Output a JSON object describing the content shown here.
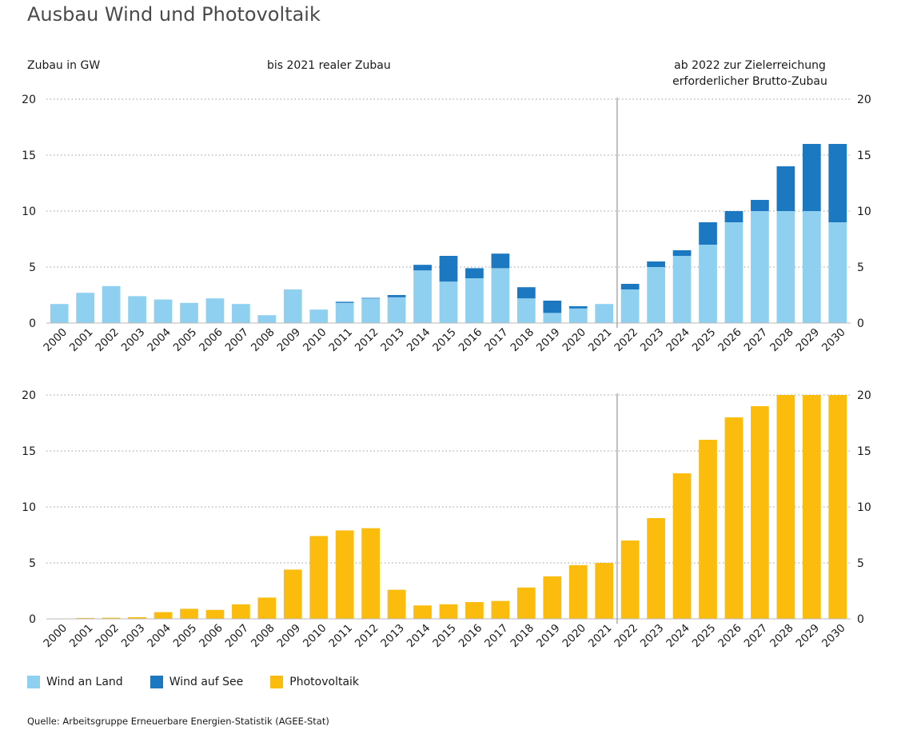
{
  "title": "Ausbau Wind und Photovoltaik",
  "header": {
    "ylabel": "Zubau in GW",
    "left_note": "bis 2021 realer Zubau",
    "right_note_line1": "ab 2022 zur Zielerreichung",
    "right_note_line2": "erforderlicher Brutto-Zubau"
  },
  "legend": [
    {
      "label": "Wind an Land",
      "color": "#8fd0f1"
    },
    {
      "label": "Wind auf See",
      "color": "#1b78c1"
    },
    {
      "label": "Photovoltaik",
      "color": "#fbbc0e"
    }
  ],
  "source": "Quelle: Arbeitsgruppe Erneuerbare Energien-Statistik (AGEE-Stat)",
  "chart_data": [
    {
      "type": "bar",
      "stacked": true,
      "categories": [
        "2000",
        "2001",
        "2002",
        "2003",
        "2004",
        "2005",
        "2006",
        "2007",
        "2008",
        "2009",
        "2010",
        "2011",
        "2012",
        "2013",
        "2014",
        "2015",
        "2016",
        "2017",
        "2018",
        "2019",
        "2020",
        "2021",
        "2022",
        "2023",
        "2024",
        "2025",
        "2026",
        "2027",
        "2028",
        "2029",
        "2030"
      ],
      "series": [
        {
          "name": "Wind an Land",
          "color": "#8fd0f1",
          "values": [
            1.7,
            2.7,
            3.3,
            2.4,
            2.1,
            1.8,
            2.2,
            1.7,
            0.7,
            3.0,
            1.2,
            1.8,
            2.2,
            2.3,
            4.7,
            3.7,
            4.0,
            4.9,
            2.2,
            0.9,
            1.3,
            1.7,
            3.0,
            5.0,
            6.0,
            7.0,
            9.0,
            10.0,
            10.0,
            10.0,
            9.0
          ]
        },
        {
          "name": "Wind auf See",
          "color": "#1b78c1",
          "values": [
            0,
            0,
            0,
            0,
            0,
            0,
            0,
            0,
            0,
            0,
            0,
            0.1,
            0.05,
            0.2,
            0.5,
            2.3,
            0.9,
            1.3,
            1.0,
            1.1,
            0.2,
            0,
            0.5,
            0.5,
            0.5,
            2.0,
            1.0,
            1.0,
            4.0,
            6.0,
            7.0
          ]
        }
      ],
      "ylim": [
        0,
        20
      ],
      "yticks": [
        0,
        5,
        10,
        15,
        20
      ],
      "split_after": "2021",
      "grid": true,
      "legend": "bottom"
    },
    {
      "type": "bar",
      "categories": [
        "2000",
        "2001",
        "2002",
        "2003",
        "2004",
        "2005",
        "2006",
        "2007",
        "2008",
        "2009",
        "2010",
        "2011",
        "2012",
        "2013",
        "2014",
        "2015",
        "2016",
        "2017",
        "2018",
        "2019",
        "2020",
        "2021",
        "2022",
        "2023",
        "2024",
        "2025",
        "2026",
        "2027",
        "2028",
        "2029",
        "2030"
      ],
      "series": [
        {
          "name": "Photovoltaik",
          "color": "#fbbc0e",
          "values": [
            0.02,
            0.08,
            0.1,
            0.15,
            0.6,
            0.9,
            0.8,
            1.3,
            1.9,
            4.4,
            7.4,
            7.9,
            8.1,
            2.6,
            1.2,
            1.3,
            1.5,
            1.6,
            2.8,
            3.8,
            4.8,
            5.0,
            7.0,
            9.0,
            13.0,
            16.0,
            18.0,
            19.0,
            20.0,
            20.0,
            20.0
          ]
        }
      ],
      "ylim": [
        0,
        20
      ],
      "yticks": [
        0,
        5,
        10,
        15,
        20
      ],
      "split_after": "2021",
      "grid": true,
      "legend": "bottom"
    }
  ]
}
